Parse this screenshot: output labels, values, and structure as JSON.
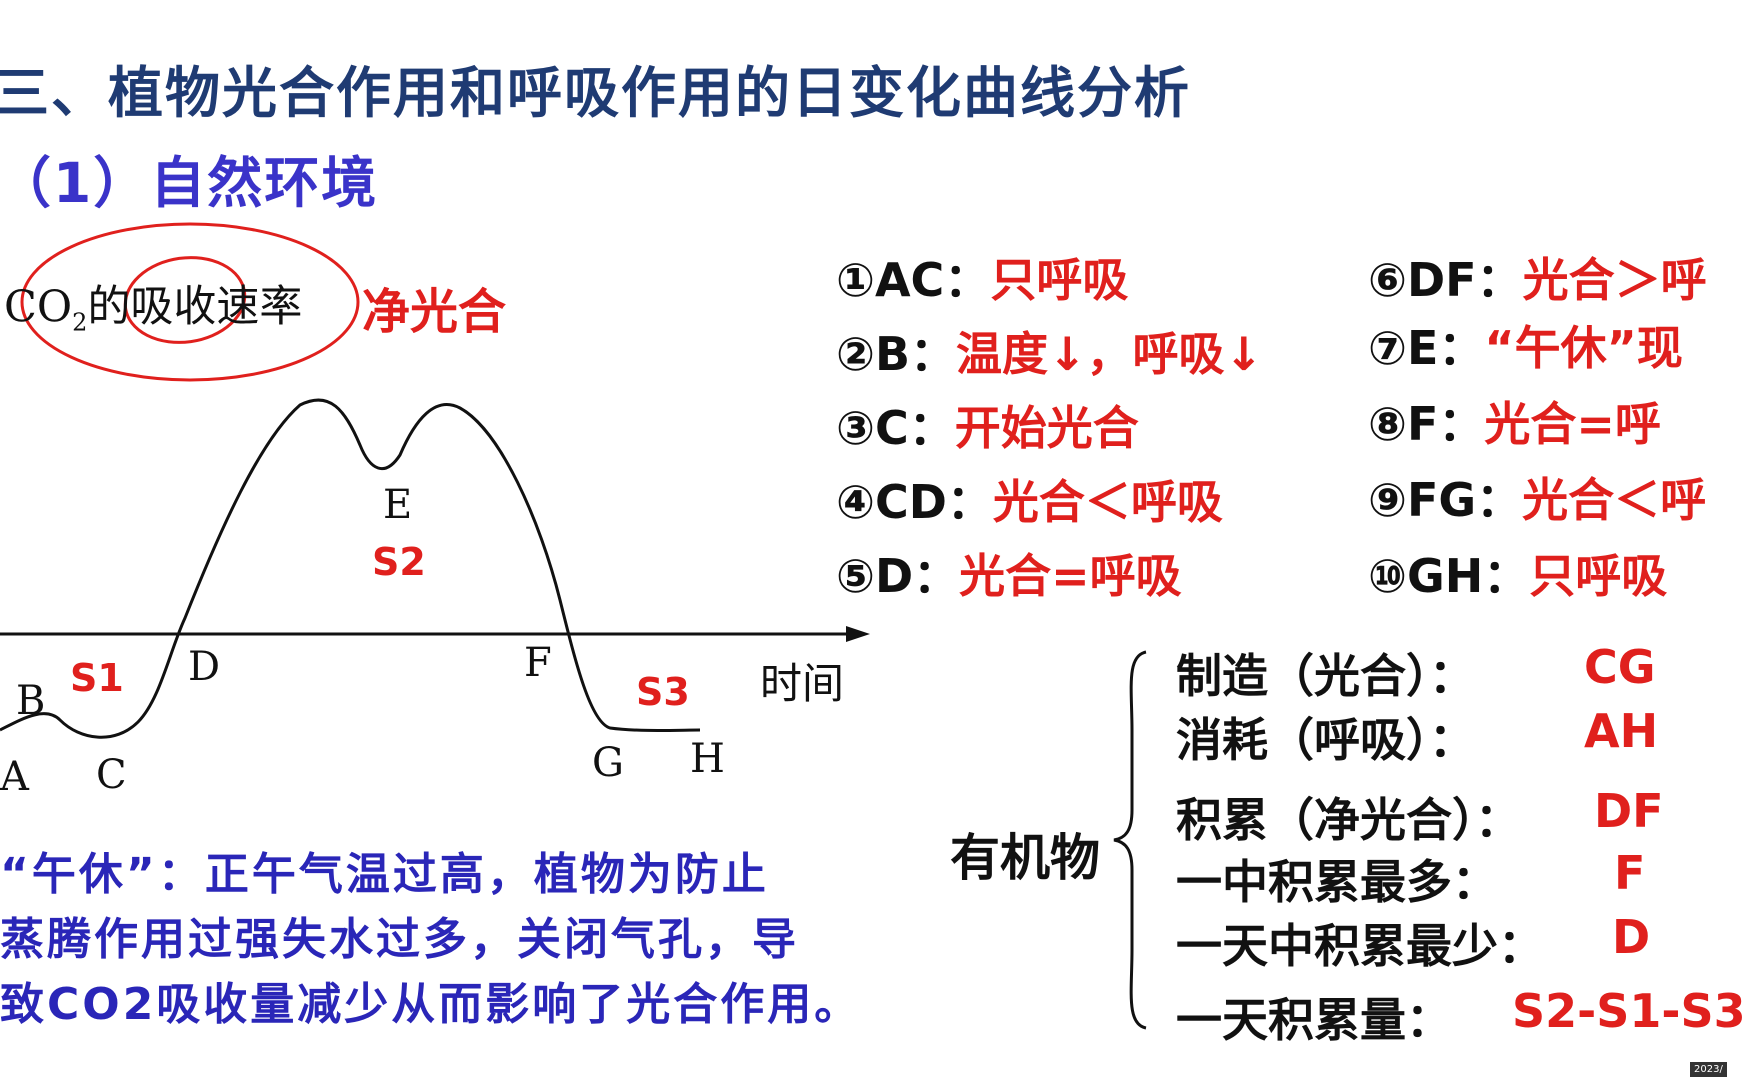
{
  "title": "三、植物光合作用和呼吸作用的日变化曲线分析",
  "subtitle": "（1）自然环境",
  "diagram": {
    "y_axis_label_main": "CO",
    "y_axis_label_sub": "2",
    "y_axis_label_rest": "的吸收速率",
    "net_label": "净光合",
    "x_axis_label": "时间",
    "points": {
      "A": "A",
      "B": "B",
      "C": "C",
      "D": "D",
      "E": "E",
      "F": "F",
      "G": "G",
      "H": "H"
    },
    "areas": {
      "S1": "S1",
      "S2": "S2",
      "S3": "S3"
    },
    "colors": {
      "curve": "#111111",
      "annotation_red": "#e0201d",
      "note_blue": "#2a26b8"
    }
  },
  "analysis": [
    {
      "key": "①AC：",
      "value": "只呼吸"
    },
    {
      "key": "②B：",
      "value": "温度↓，呼吸↓"
    },
    {
      "key": "③C：",
      "value": "开始光合"
    },
    {
      "key": "④CD：",
      "value": "光合＜呼吸"
    },
    {
      "key": "⑤D：",
      "value": "光合=呼吸"
    },
    {
      "key": "⑥DF：",
      "value": "光合＞呼"
    },
    {
      "key": "⑦E：",
      "value": "“午休”现"
    },
    {
      "key": "⑧F：",
      "value": "光合=呼"
    },
    {
      "key": "⑨FG：",
      "value": "光合＜呼"
    },
    {
      "key": "⑩GH：",
      "value": "只呼吸"
    }
  ],
  "organic": {
    "label": "有机物",
    "rows": [
      {
        "key": "制造（光合）：",
        "value": "CG"
      },
      {
        "key": "消耗（呼吸）：",
        "value": "AH"
      },
      {
        "key": "积累（净光合）：",
        "value": "DF"
      },
      {
        "key": "一中积累最多：",
        "value": "F"
      },
      {
        "key": "一天中积累最少：",
        "value": "D"
      },
      {
        "key": "一天积累量：",
        "value": "S2-S1-S3"
      }
    ]
  },
  "note_lines": [
    "“午休”：正午气温过高，植物为防止",
    "蒸腾作用过强失水过多，关闭气孔，导",
    "致CO2吸收量减少从而影响了光合作用。"
  ],
  "timestamp": "2023/"
}
